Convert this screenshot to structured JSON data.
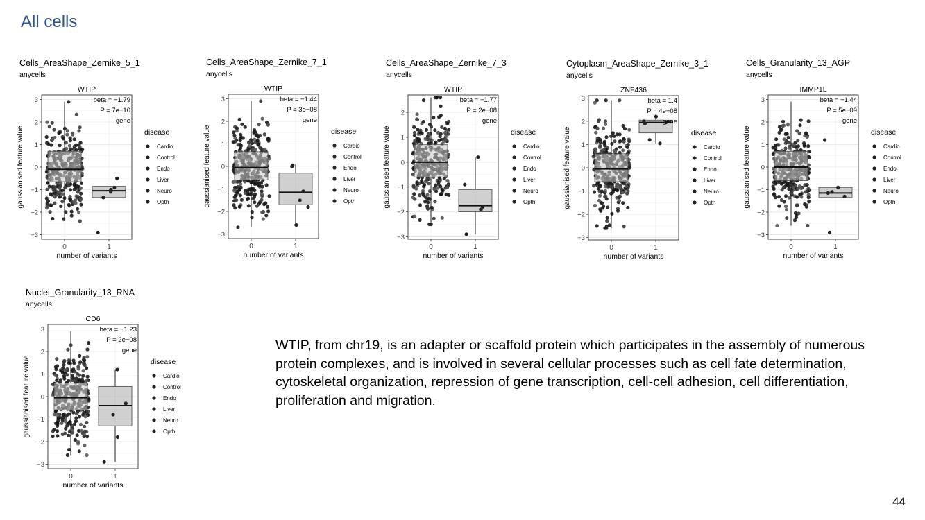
{
  "title": "All cells",
  "description": "WTIP, from chr19, is an adapter or scaffold protein which participates in the assembly of numerous protein complexes, and is involved in several cellular processes such as cell fate determination, cytoskeletal organization, repression of gene transcription, cell-cell adhesion, cell differentiation, proliferation and migration.",
  "page_number": "44",
  "chart_data": [
    {
      "type": "box",
      "title": "Cells_AreaShape_Zernike_5_1",
      "subtitle": "anycells",
      "gene": "WTIP",
      "annotation": [
        "beta = −1.79",
        "P = 7e−10",
        "gene"
      ],
      "xlabel": "number of variants",
      "ylabel": "gaussianised feature value",
      "categories": [
        "0",
        "1"
      ],
      "yticks": [
        -3,
        -2,
        -1,
        0,
        1,
        2,
        3
      ],
      "ylim": [
        -3.2,
        3.2
      ],
      "legend_title": "disease",
      "legend": [
        "Cardio",
        "Control",
        "Endo",
        "Liver",
        "Neuro",
        "Opth"
      ],
      "boxes": [
        {
          "x": "0",
          "q1": -0.65,
          "median": -0.1,
          "q3": 0.7,
          "lower": -2.4,
          "upper": 2.9,
          "n": 300
        },
        {
          "x": "1",
          "q1": -1.35,
          "median": -1.05,
          "q3": -0.85,
          "lower": -1.35,
          "upper": -0.85,
          "points": [
            -0.5,
            -0.9,
            -1.0,
            -1.1,
            -1.35,
            -2.9
          ]
        }
      ]
    },
    {
      "type": "box",
      "title": "Cells_AreaShape_Zernike_7_1",
      "subtitle": "anycells",
      "gene": "WTIP",
      "annotation": [
        "beta = −1.44",
        "P = 3e−08",
        "gene"
      ],
      "xlabel": "number of variants",
      "ylabel": "gaussianised feature value",
      "categories": [
        "0",
        "1"
      ],
      "yticks": [
        -3,
        -2,
        -1,
        0,
        1,
        2,
        3
      ],
      "ylim": [
        -3.2,
        3.2
      ],
      "legend_title": "disease",
      "legend": [
        "Cardio",
        "Control",
        "Endo",
        "Liver",
        "Neuro",
        "Opth"
      ],
      "boxes": [
        {
          "x": "0",
          "q1": -0.6,
          "median": -0.05,
          "q3": 0.65,
          "lower": -2.7,
          "upper": 2.9,
          "n": 300
        },
        {
          "x": "1",
          "q1": -1.7,
          "median": -1.15,
          "q3": -0.3,
          "lower": -2.6,
          "upper": 0.1,
          "points": [
            0.05,
            0.0,
            -1.1,
            -1.5,
            -1.8,
            -2.6
          ]
        }
      ]
    },
    {
      "type": "box",
      "title": "Cells_AreaShape_Zernike_7_3",
      "subtitle": "anycells",
      "gene": "WTIP",
      "annotation": [
        "beta = −1.77",
        "P = 2e−08",
        "gene"
      ],
      "xlabel": "number of variants",
      "ylabel": "gaussianised feature value",
      "categories": [
        "0",
        "1"
      ],
      "yticks": [
        -3,
        -2,
        -1,
        0,
        1,
        2
      ],
      "ylim": [
        -3.1,
        2.7
      ],
      "legend_title": "disease",
      "legend": [
        "Cardio",
        "Control",
        "Endo",
        "Liver",
        "Neuro",
        "Opth"
      ],
      "boxes": [
        {
          "x": "0",
          "q1": -0.6,
          "median": 0.0,
          "q3": 0.7,
          "lower": -2.5,
          "upper": 2.6,
          "n": 300
        },
        {
          "x": "1",
          "q1": -2.0,
          "median": -1.75,
          "q3": -1.1,
          "lower": -2.9,
          "upper": 0.2,
          "points": [
            0.2,
            -0.9,
            -1.8,
            -1.9,
            -1.9,
            -2.9
          ]
        }
      ]
    },
    {
      "type": "box",
      "title": "Cytoplasm_AreaShape_Zernike_3_1",
      "subtitle": "anycells",
      "gene": "ZNF436",
      "annotation": [
        "beta = 1.4",
        "P = 4e−08",
        "gene"
      ],
      "xlabel": "number of variants",
      "ylabel": "gaussianised feature value",
      "categories": [
        "0",
        "1"
      ],
      "yticks": [
        -3,
        -2,
        -1,
        0,
        1,
        2,
        3
      ],
      "ylim": [
        -3.1,
        3.1
      ],
      "legend_title": "disease",
      "legend": [
        "Cardio",
        "Control",
        "Endo",
        "Liver",
        "Neuro",
        "Opth"
      ],
      "boxes": [
        {
          "x": "0",
          "q1": -0.6,
          "median": -0.05,
          "q3": 0.6,
          "lower": -2.6,
          "upper": 2.9,
          "n": 300
        },
        {
          "x": "1",
          "q1": 1.5,
          "median": 1.95,
          "q3": 2.05,
          "lower": 1.05,
          "upper": 2.3,
          "points": [
            2.2,
            2.0,
            1.95,
            1.9,
            1.2,
            1.05
          ]
        }
      ]
    },
    {
      "type": "box",
      "title": "Cells_Granularity_13_AGP",
      "subtitle": "anycells",
      "gene": "IMMP1L",
      "annotation": [
        "beta = −1.44",
        "P = 5e−09",
        "gene"
      ],
      "xlabel": "number of variants",
      "ylabel": "gaussianised feature value",
      "categories": [
        "0",
        "1"
      ],
      "yticks": [
        -3,
        -2,
        -1,
        0,
        1,
        2,
        3
      ],
      "ylim": [
        -3.2,
        3.2
      ],
      "legend_title": "disease",
      "legend": [
        "Cardio",
        "Control",
        "Endo",
        "Liver",
        "Neuro",
        "Opth"
      ],
      "boxes": [
        {
          "x": "0",
          "q1": -0.6,
          "median": 0.0,
          "q3": 0.7,
          "lower": -2.6,
          "upper": 2.9,
          "n": 300
        },
        {
          "x": "1",
          "q1": -1.35,
          "median": -1.15,
          "q3": -0.9,
          "lower": -1.35,
          "upper": -0.9,
          "points": [
            1.2,
            -0.9,
            -1.1,
            -1.15,
            -1.3,
            -2.9
          ]
        }
      ]
    },
    {
      "type": "box",
      "title": "Nuclei_Granularity_13_RNA",
      "subtitle": "anycells",
      "gene": "CD6",
      "annotation": [
        "beta = −1.23",
        "P = 2e−08",
        "gene"
      ],
      "xlabel": "number of variants",
      "ylabel": "gaussianised feature value",
      "categories": [
        "0",
        "1"
      ],
      "yticks": [
        -3,
        -2,
        -1,
        0,
        1,
        2,
        3
      ],
      "ylim": [
        -3.2,
        3.2
      ],
      "legend_title": "disease",
      "legend": [
        "Cardio",
        "Control",
        "Endo",
        "Liver",
        "Neuro",
        "Opth"
      ],
      "boxes": [
        {
          "x": "0",
          "q1": -0.6,
          "median": -0.05,
          "q3": 0.6,
          "lower": -2.6,
          "upper": 2.9,
          "n": 300
        },
        {
          "x": "1",
          "q1": -1.3,
          "median": -0.4,
          "q3": 0.45,
          "lower": -2.9,
          "upper": 1.2,
          "points": [
            1.2,
            -0.3,
            -0.8,
            -1.8,
            -2.9
          ]
        }
      ]
    }
  ]
}
